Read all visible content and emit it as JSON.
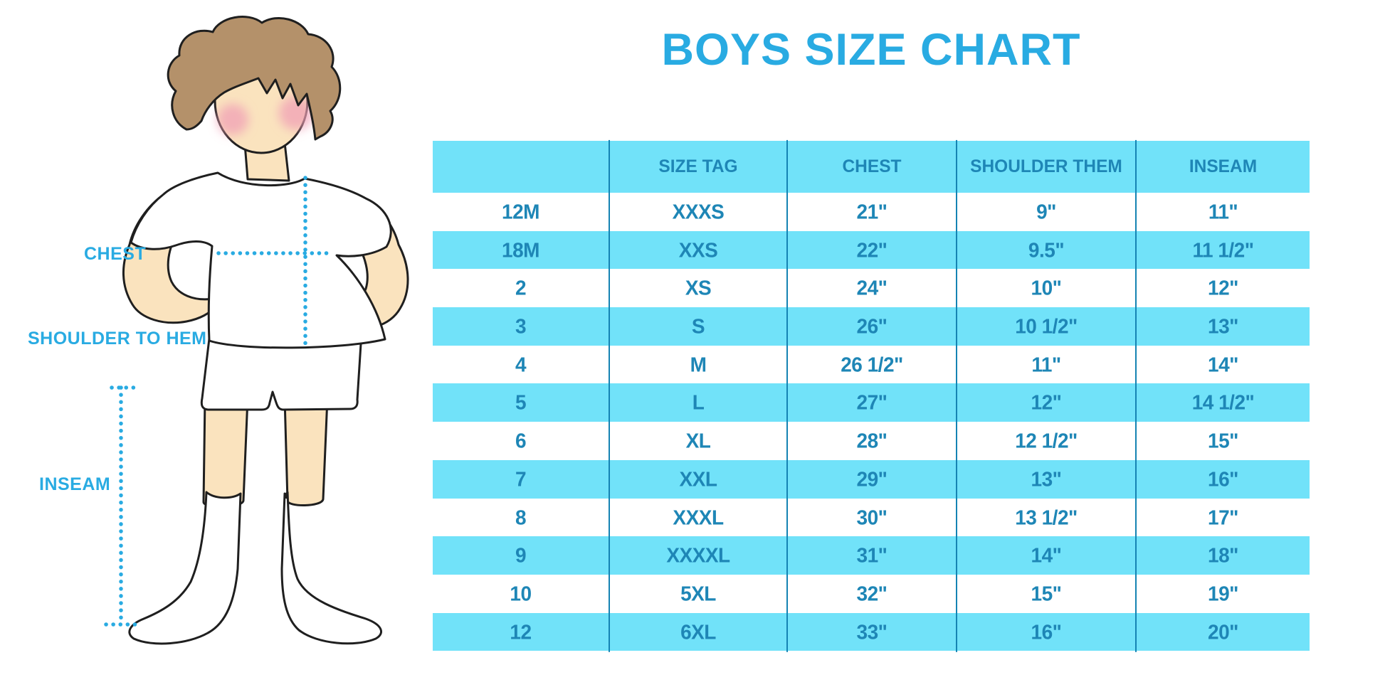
{
  "title": "BOYS SIZE CHART",
  "figure": {
    "illustration": "boy-front-standing-with-measurement-lines",
    "chest_label": "CHEST",
    "shoulder_to_hem_label": "SHOULDER TO HEM",
    "inseam_label": "INSEAM"
  },
  "colors": {
    "title_blue": "#29ABE2",
    "measure_label_blue": "#29ABE2",
    "dotted_line_blue": "#29ABE2",
    "stripe_cyan": "#71E2F9",
    "table_text_teal": "#1E86B6",
    "column_border_teal": "#1583B3",
    "skin": "#FAE3BE",
    "hair": "#B4916A",
    "blush": "#F0A0B5",
    "outline": "#1F1F1F"
  },
  "chart_data": {
    "type": "table",
    "title": "BOYS SIZE CHART",
    "columns": [
      "",
      "SIZE TAG",
      "CHEST",
      "SHOULDER THEM",
      "INSEAM"
    ],
    "rows": [
      [
        "12M",
        "XXXS",
        "21\"",
        "9\"",
        "11\""
      ],
      [
        "18M",
        "XXS",
        "22\"",
        "9.5\"",
        "11 1/2\""
      ],
      [
        "2",
        "XS",
        "24\"",
        "10\"",
        "12\""
      ],
      [
        "3",
        "S",
        "26\"",
        "10 1/2\"",
        "13\""
      ],
      [
        "4",
        "M",
        "26 1/2\"",
        "11\"",
        "14\""
      ],
      [
        "5",
        "L",
        "27\"",
        "12\"",
        "14 1/2\""
      ],
      [
        "6",
        "XL",
        "28\"",
        "12 1/2\"",
        "15\""
      ],
      [
        "7",
        "XXL",
        "29\"",
        "13\"",
        "16\""
      ],
      [
        "8",
        "XXXL",
        "30\"",
        "13 1/2\"",
        "17\""
      ],
      [
        "9",
        "XXXXL",
        "31\"",
        "14\"",
        "18\""
      ],
      [
        "10",
        "5XL",
        "32\"",
        "15\"",
        "19\""
      ],
      [
        "12",
        "6XL",
        "33\"",
        "16\"",
        "20\""
      ]
    ],
    "layout": {
      "striped": true,
      "header_fill": "cyan",
      "first_data_row": "white",
      "column_separators": "vertical-only",
      "legend": "none"
    }
  }
}
